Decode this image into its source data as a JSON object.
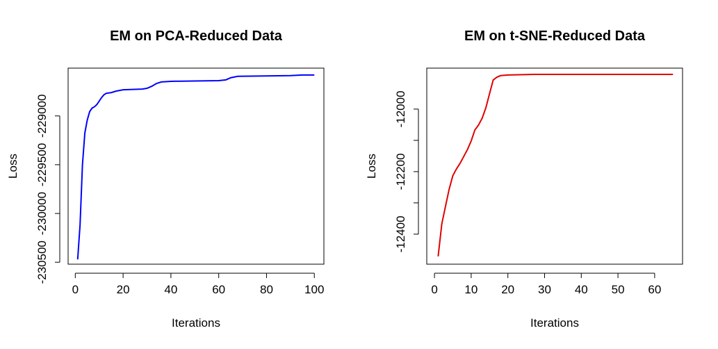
{
  "chart_data": [
    {
      "type": "line",
      "title": "EM on PCA-Reduced Data",
      "xlabel": "Iterations",
      "ylabel": "Loss",
      "x": [
        1,
        2,
        3,
        4,
        5,
        6,
        7,
        8,
        9,
        10,
        11,
        12,
        13,
        15,
        17,
        20,
        28,
        30,
        32,
        34,
        36,
        40,
        60,
        63,
        65,
        68,
        90,
        95,
        100
      ],
      "series": [
        {
          "name": "PCA",
          "color": "#0000ff",
          "values": [
            -230471,
            -230116,
            -229500,
            -229174,
            -229043,
            -228957,
            -228920,
            -228906,
            -228884,
            -228848,
            -228812,
            -228783,
            -228768,
            -228761,
            -228746,
            -228732,
            -228725,
            -228717,
            -228696,
            -228667,
            -228652,
            -228645,
            -228638,
            -228630,
            -228609,
            -228594,
            -228587,
            -228580,
            -228580
          ]
        }
      ],
      "xlim": [
        -3,
        104
      ],
      "ylim": [
        -230520,
        -228510
      ],
      "xticks": [
        0,
        20,
        40,
        60,
        80,
        100
      ],
      "yticks": [
        -230500,
        -230000,
        -229500,
        -229000
      ]
    },
    {
      "type": "line",
      "title": "EM on t-SNE-Reduced Data",
      "xlabel": "Iterations",
      "ylabel": "Loss",
      "x": [
        1,
        2,
        3,
        4,
        5,
        6,
        7,
        8,
        9,
        10,
        11,
        12,
        13,
        14,
        15,
        16,
        17,
        18,
        20,
        27,
        65
      ],
      "series": [
        {
          "name": "t-SNE",
          "color": "#e00000",
          "values": [
            -12471,
            -12367,
            -12311,
            -12256,
            -12213,
            -12191,
            -12173,
            -12151,
            -12129,
            -12102,
            -12067,
            -12051,
            -12029,
            -11996,
            -11951,
            -11907,
            -11898,
            -11893,
            -11891,
            -11889,
            -11889
          ]
        }
      ],
      "xlim": [
        -2.1,
        67.6
      ],
      "ylim": [
        -12496,
        -11869
      ],
      "xticks": [
        0,
        10,
        20,
        30,
        40,
        50,
        60
      ],
      "yticks": [
        -12400,
        -12300,
        -12200,
        -12100,
        -12000
      ]
    }
  ]
}
